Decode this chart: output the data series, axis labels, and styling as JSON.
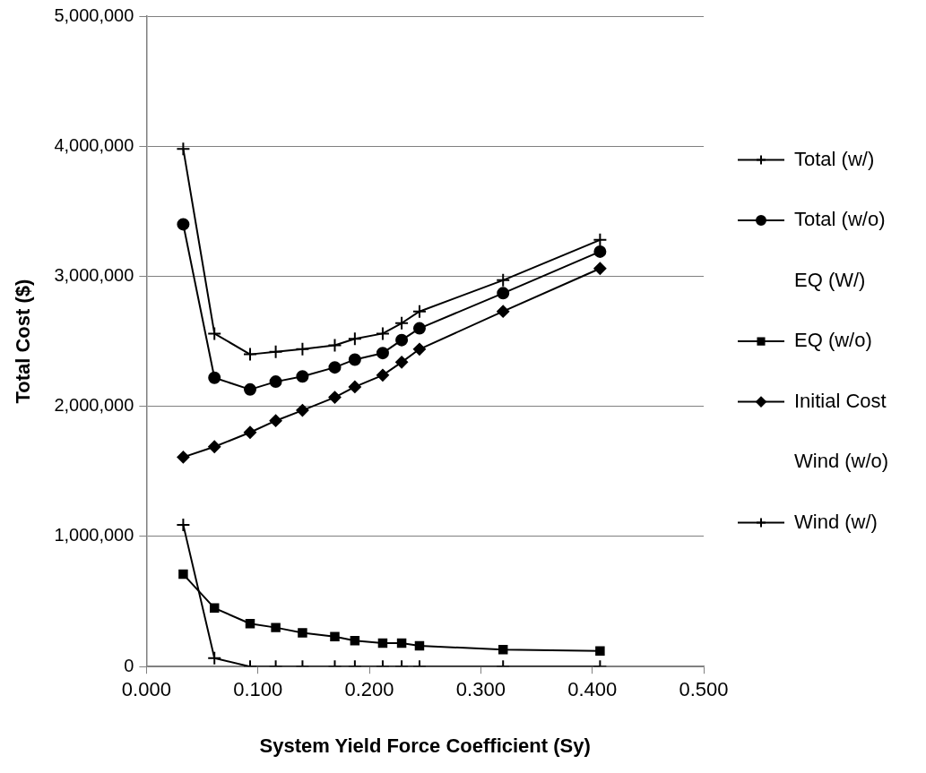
{
  "chart_data": {
    "type": "line",
    "xlabel": "System Yield Force Coefficient (Sy)",
    "ylabel": "Total Cost ($)",
    "x": [
      0.033,
      0.061,
      0.093,
      0.116,
      0.14,
      0.169,
      0.187,
      0.212,
      0.229,
      0.245,
      0.32,
      0.407
    ],
    "xlim": [
      0,
      0.5
    ],
    "xticks": [
      {
        "value": 0,
        "label": "0.000"
      },
      {
        "value": 0.1,
        "label": "0.100"
      },
      {
        "value": 0.2,
        "label": "0.200"
      },
      {
        "value": 0.3,
        "label": "0.300"
      },
      {
        "value": 0.4,
        "label": "0.400"
      },
      {
        "value": 0.5,
        "label": "0.500"
      }
    ],
    "ylim": [
      0,
      5000000
    ],
    "yticks": [
      0,
      {
        "value": 1000000,
        "label": "1,000,000"
      },
      {
        "value": 2000000,
        "label": "2,000,000"
      },
      {
        "value": 3000000,
        "label": "3,000,000"
      },
      {
        "value": 4000000,
        "label": "4,000,000"
      },
      {
        "value": 5000000,
        "label": "5,000,000"
      }
    ],
    "grid": "y",
    "legend": "right",
    "line_style": "solid",
    "series": [
      {
        "name": "Total (w/)",
        "color": "#000000",
        "marker": "cross",
        "values": [
          3980000,
          2560000,
          2400000,
          2420000,
          2440000,
          2470000,
          2520000,
          2560000,
          2640000,
          2730000,
          2970000,
          3280000
        ]
      },
      {
        "name": "Total (w/o)",
        "color": "#000000",
        "marker": "circle",
        "values": [
          3400000,
          2220000,
          2130000,
          2190000,
          2230000,
          2300000,
          2360000,
          2410000,
          2510000,
          2600000,
          2870000,
          3190000
        ]
      },
      {
        "name": "EQ (W/)",
        "color": "#000000",
        "marker": "none",
        "values": [
          null,
          null,
          null,
          null,
          null,
          null,
          null,
          null,
          null,
          null,
          null,
          null
        ]
      },
      {
        "name": "EQ (w/o)",
        "color": "#000000",
        "marker": "square",
        "values": [
          710000,
          450000,
          330000,
          300000,
          260000,
          230000,
          200000,
          180000,
          180000,
          160000,
          130000,
          120000
        ]
      },
      {
        "name": "Initial Cost",
        "color": "#000000",
        "marker": "diamond",
        "values": [
          1610000,
          1690000,
          1800000,
          1890000,
          1970000,
          2070000,
          2150000,
          2240000,
          2340000,
          2440000,
          2730000,
          3060000
        ]
      },
      {
        "name": "Wind (w/o)",
        "color": "#000000",
        "marker": "none",
        "values": [
          null,
          null,
          null,
          null,
          null,
          null,
          null,
          null,
          null,
          null,
          null,
          null
        ]
      },
      {
        "name": "Wind (w/)",
        "color": "#000000",
        "marker": "cross",
        "values": [
          1090000,
          65000,
          0,
          0,
          0,
          0,
          0,
          0,
          0,
          0,
          0,
          0
        ]
      }
    ]
  }
}
